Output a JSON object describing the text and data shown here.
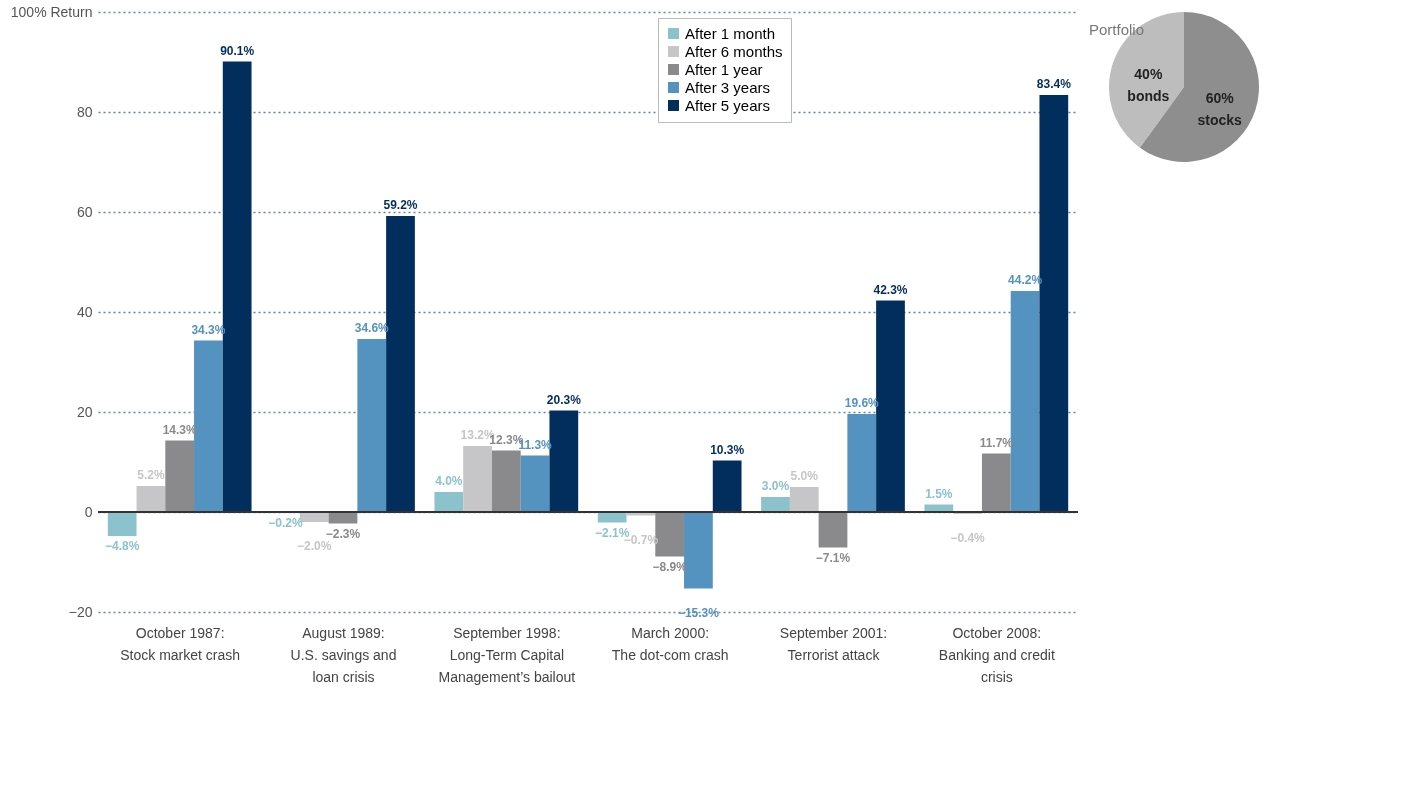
{
  "chart_data": [
    {
      "type": "bar",
      "categories": [
        "October 1987:\nStock market crash",
        "August 1989:\nU.S. savings and\nloan crisis",
        "September 1998:\nLong-Term Capital\nManagement’s bailout",
        "March 2000:\nThe dot-com crash",
        "September 2001:\nTerrorist attack",
        "October 2008:\nBanking and credit\ncrisis"
      ],
      "series": [
        {
          "name": "After 1 month",
          "color": "#8cc2cc",
          "values": [
            -4.8,
            -0.2,
            4.0,
            -2.1,
            3.0,
            1.5
          ],
          "value_labels": [
            "−4.8%",
            "−0.2%",
            "4.0%",
            "−2.1%",
            "3.0%",
            "1.5%"
          ]
        },
        {
          "name": "After 6 months",
          "color": "#c6c6c8",
          "values": [
            5.2,
            -2.0,
            13.2,
            -0.7,
            5.0,
            -0.4
          ],
          "value_labels": [
            "5.2%",
            "−2.0%",
            "13.2%",
            "−0.7%",
            "5.0%",
            "−0.4%"
          ]
        },
        {
          "name": "After 1 year",
          "color": "#8a8a8c",
          "values": [
            14.3,
            -2.3,
            12.3,
            -8.9,
            -7.1,
            11.7
          ],
          "value_labels": [
            "14.3%",
            "−2.3%",
            "12.3%",
            "−8.9%",
            "−7.1%",
            "11.7%"
          ]
        },
        {
          "name": "After 3 years",
          "color": "#5492bf",
          "values": [
            34.3,
            34.6,
            11.3,
            -15.3,
            19.6,
            44.2
          ],
          "value_labels": [
            "34.3%",
            "34.6%",
            "11.3%",
            "−15.3%",
            "19.6%",
            "44.2%"
          ]
        },
        {
          "name": "After 5 years",
          "color": "#022e5e",
          "values": [
            90.1,
            59.2,
            20.3,
            10.3,
            42.3,
            83.4
          ],
          "value_labels": [
            "90.1%",
            "59.2%",
            "20.3%",
            "10.3%",
            "42.3%",
            "83.4%"
          ]
        }
      ],
      "ylim": [
        -20,
        100
      ],
      "yticks": [
        -20,
        0,
        20,
        40,
        60,
        80,
        {
          "value": 100,
          "label": "100% Return"
        }
      ],
      "grid": "y",
      "ref_lines": [
        {
          "axis": "y",
          "value": 0,
          "color": "#333333"
        }
      ],
      "legend": "top"
    },
    {
      "type": "pie",
      "title": "Portfolio",
      "categories": [
        "bonds",
        "stocks"
      ],
      "values": [
        40,
        60
      ],
      "colors": [
        "#bdbdbd",
        "#8e8e8e"
      ],
      "value_labels": [
        "40%",
        "60%"
      ]
    }
  ]
}
